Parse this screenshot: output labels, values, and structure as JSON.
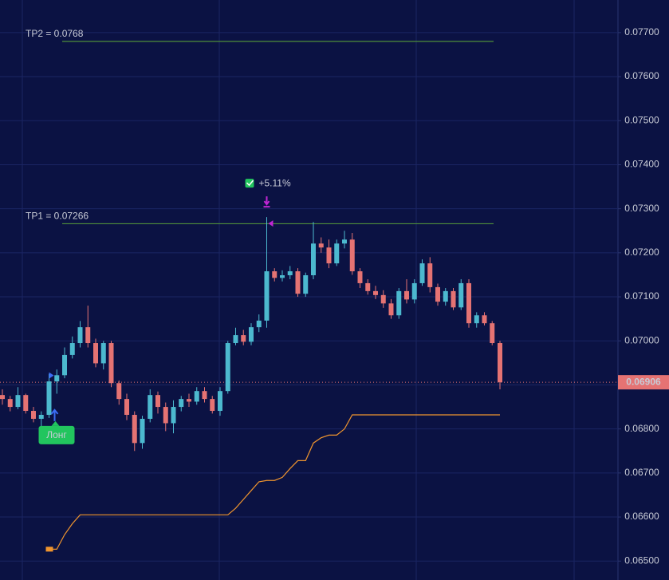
{
  "chart_data": {
    "type": "candlestick",
    "ylim": [
      0.06457,
      0.07774
    ],
    "yticks": [
      {
        "value": 0.065,
        "label": "0.06500"
      },
      {
        "value": 0.066,
        "label": "0.06600"
      },
      {
        "value": 0.067,
        "label": "0.06700"
      },
      {
        "value": 0.068,
        "label": "0.06800"
      },
      {
        "value": 0.069,
        "label": "0.06900"
      },
      {
        "value": 0.07,
        "label": "0.07000"
      },
      {
        "value": 0.071,
        "label": "0.07100"
      },
      {
        "value": 0.072,
        "label": "0.07200"
      },
      {
        "value": 0.073,
        "label": "0.07300"
      },
      {
        "value": 0.074,
        "label": "0.07400"
      },
      {
        "value": 0.075,
        "label": "0.07500"
      },
      {
        "value": 0.076,
        "label": "0.07600"
      },
      {
        "value": 0.077,
        "label": "0.07700"
      }
    ],
    "grid": true,
    "up_color": "#4cb9cf",
    "down_color": "#e57373",
    "open": [
      0.06877,
      0.06868,
      0.0685,
      0.06877,
      0.06841,
      0.06823,
      0.06832,
      0.06908,
      0.06922,
      0.06968,
      0.06995,
      0.07031,
      0.06995,
      0.06949,
      0.06995,
      0.06904,
      0.06868,
      0.06832,
      0.06768,
      0.06823,
      0.06877,
      0.0685,
      0.06813,
      0.0685,
      0.06868,
      0.06862,
      0.06886,
      0.06868,
      0.06841,
      0.06886,
      0.06995,
      0.07013,
      0.06998,
      0.07031,
      0.07046,
      0.07158,
      0.07143,
      0.07149,
      0.07158,
      0.07107,
      0.07149,
      0.07221,
      0.07212,
      0.07176,
      0.07221,
      0.0723,
      0.07158,
      0.07131,
      0.07113,
      0.07104,
      0.07085,
      0.07058,
      0.07113,
      0.07094,
      0.07131,
      0.07176,
      0.07122,
      0.07089,
      0.07113,
      0.07076,
      0.07131,
      0.0704,
      0.07058,
      0.0704,
      0.06995
    ],
    "high": [
      0.0689,
      0.06875,
      0.06895,
      0.0688,
      0.0685,
      0.0684,
      0.06925,
      0.06935,
      0.06985,
      0.0701,
      0.07045,
      0.0708,
      0.07005,
      0.07,
      0.07,
      0.0691,
      0.0688,
      0.0684,
      0.0683,
      0.0689,
      0.06885,
      0.0686,
      0.06865,
      0.06875,
      0.0688,
      0.06895,
      0.06895,
      0.06875,
      0.06895,
      0.07,
      0.0703,
      0.07025,
      0.0704,
      0.0706,
      0.07281,
      0.07165,
      0.0716,
      0.0717,
      0.07165,
      0.07155,
      0.0727,
      0.07235,
      0.0723,
      0.0723,
      0.0725,
      0.07245,
      0.07165,
      0.0714,
      0.07125,
      0.07115,
      0.07095,
      0.0712,
      0.0714,
      0.0714,
      0.07185,
      0.0719,
      0.0713,
      0.0712,
      0.0712,
      0.0714,
      0.0714,
      0.07065,
      0.07065,
      0.07045,
      0.07
    ],
    "low": [
      0.06855,
      0.0684,
      0.06845,
      0.06835,
      0.06815,
      0.06795,
      0.06825,
      0.0688,
      0.06915,
      0.0696,
      0.06985,
      0.06985,
      0.0694,
      0.06935,
      0.06895,
      0.06855,
      0.0682,
      0.0675,
      0.06755,
      0.06815,
      0.06835,
      0.06795,
      0.0679,
      0.0684,
      0.0685,
      0.06855,
      0.0686,
      0.06835,
      0.0683,
      0.0688,
      0.0699,
      0.0699,
      0.0699,
      0.0702,
      0.0703,
      0.07135,
      0.07135,
      0.0714,
      0.071,
      0.071,
      0.0714,
      0.072,
      0.07165,
      0.0717,
      0.0721,
      0.0715,
      0.0712,
      0.07105,
      0.07095,
      0.07075,
      0.0705,
      0.0705,
      0.07085,
      0.07085,
      0.07125,
      0.0711,
      0.0708,
      0.0708,
      0.0707,
      0.0707,
      0.0703,
      0.0703,
      0.07035,
      0.0699,
      0.0689
    ],
    "close": [
      0.06868,
      0.0685,
      0.06877,
      0.06841,
      0.06823,
      0.06832,
      0.06908,
      0.06922,
      0.06968,
      0.06995,
      0.07031,
      0.06995,
      0.06949,
      0.06995,
      0.06904,
      0.06868,
      0.06832,
      0.06768,
      0.06823,
      0.06877,
      0.0685,
      0.06813,
      0.0685,
      0.06868,
      0.06862,
      0.06886,
      0.06868,
      0.06841,
      0.06886,
      0.06995,
      0.07013,
      0.06998,
      0.07031,
      0.07046,
      0.07158,
      0.07143,
      0.07149,
      0.07158,
      0.07107,
      0.07149,
      0.07221,
      0.07212,
      0.07176,
      0.07221,
      0.0723,
      0.07158,
      0.07131,
      0.07113,
      0.07104,
      0.07085,
      0.07058,
      0.07113,
      0.07094,
      0.07131,
      0.07176,
      0.07122,
      0.07089,
      0.07113,
      0.07076,
      0.07131,
      0.0704,
      0.07058,
      0.0704,
      0.06995,
      0.06906
    ],
    "stop_line": {
      "color": "#f0952e",
      "values": [
        null,
        null,
        null,
        null,
        null,
        null,
        0.06527,
        0.06527,
        0.0656,
        0.06585,
        0.06605,
        0.06605,
        0.06605,
        0.06605,
        0.06605,
        0.06605,
        0.06605,
        0.06605,
        0.06605,
        0.06605,
        0.06605,
        0.06605,
        0.06605,
        0.06605,
        0.06605,
        0.06605,
        0.06605,
        0.06605,
        0.06605,
        0.06605,
        0.0662,
        0.0664,
        0.0666,
        0.0668,
        0.06683,
        0.06683,
        0.0669,
        0.0671,
        0.06728,
        0.06728,
        0.06768,
        0.0678,
        0.06786,
        0.06786,
        0.068,
        0.06832,
        0.06832,
        0.06832,
        0.06832,
        0.06832,
        0.06832,
        0.06832,
        0.06832,
        0.06832,
        0.06832,
        0.06832,
        0.06832,
        0.06832,
        0.06832,
        0.06832,
        0.06832,
        0.06832,
        0.06832,
        0.06832,
        0.06832
      ]
    },
    "tp_lines": [
      {
        "label": "TP2 = 0.0768",
        "value": 0.0768,
        "color": "#4f8f3a"
      },
      {
        "label": "TP1 = 0.07266",
        "value": 0.07266,
        "color": "#4f8f3a"
      }
    ],
    "profit_label": "+5.11%",
    "entry_label": "Лонг"
  }
}
